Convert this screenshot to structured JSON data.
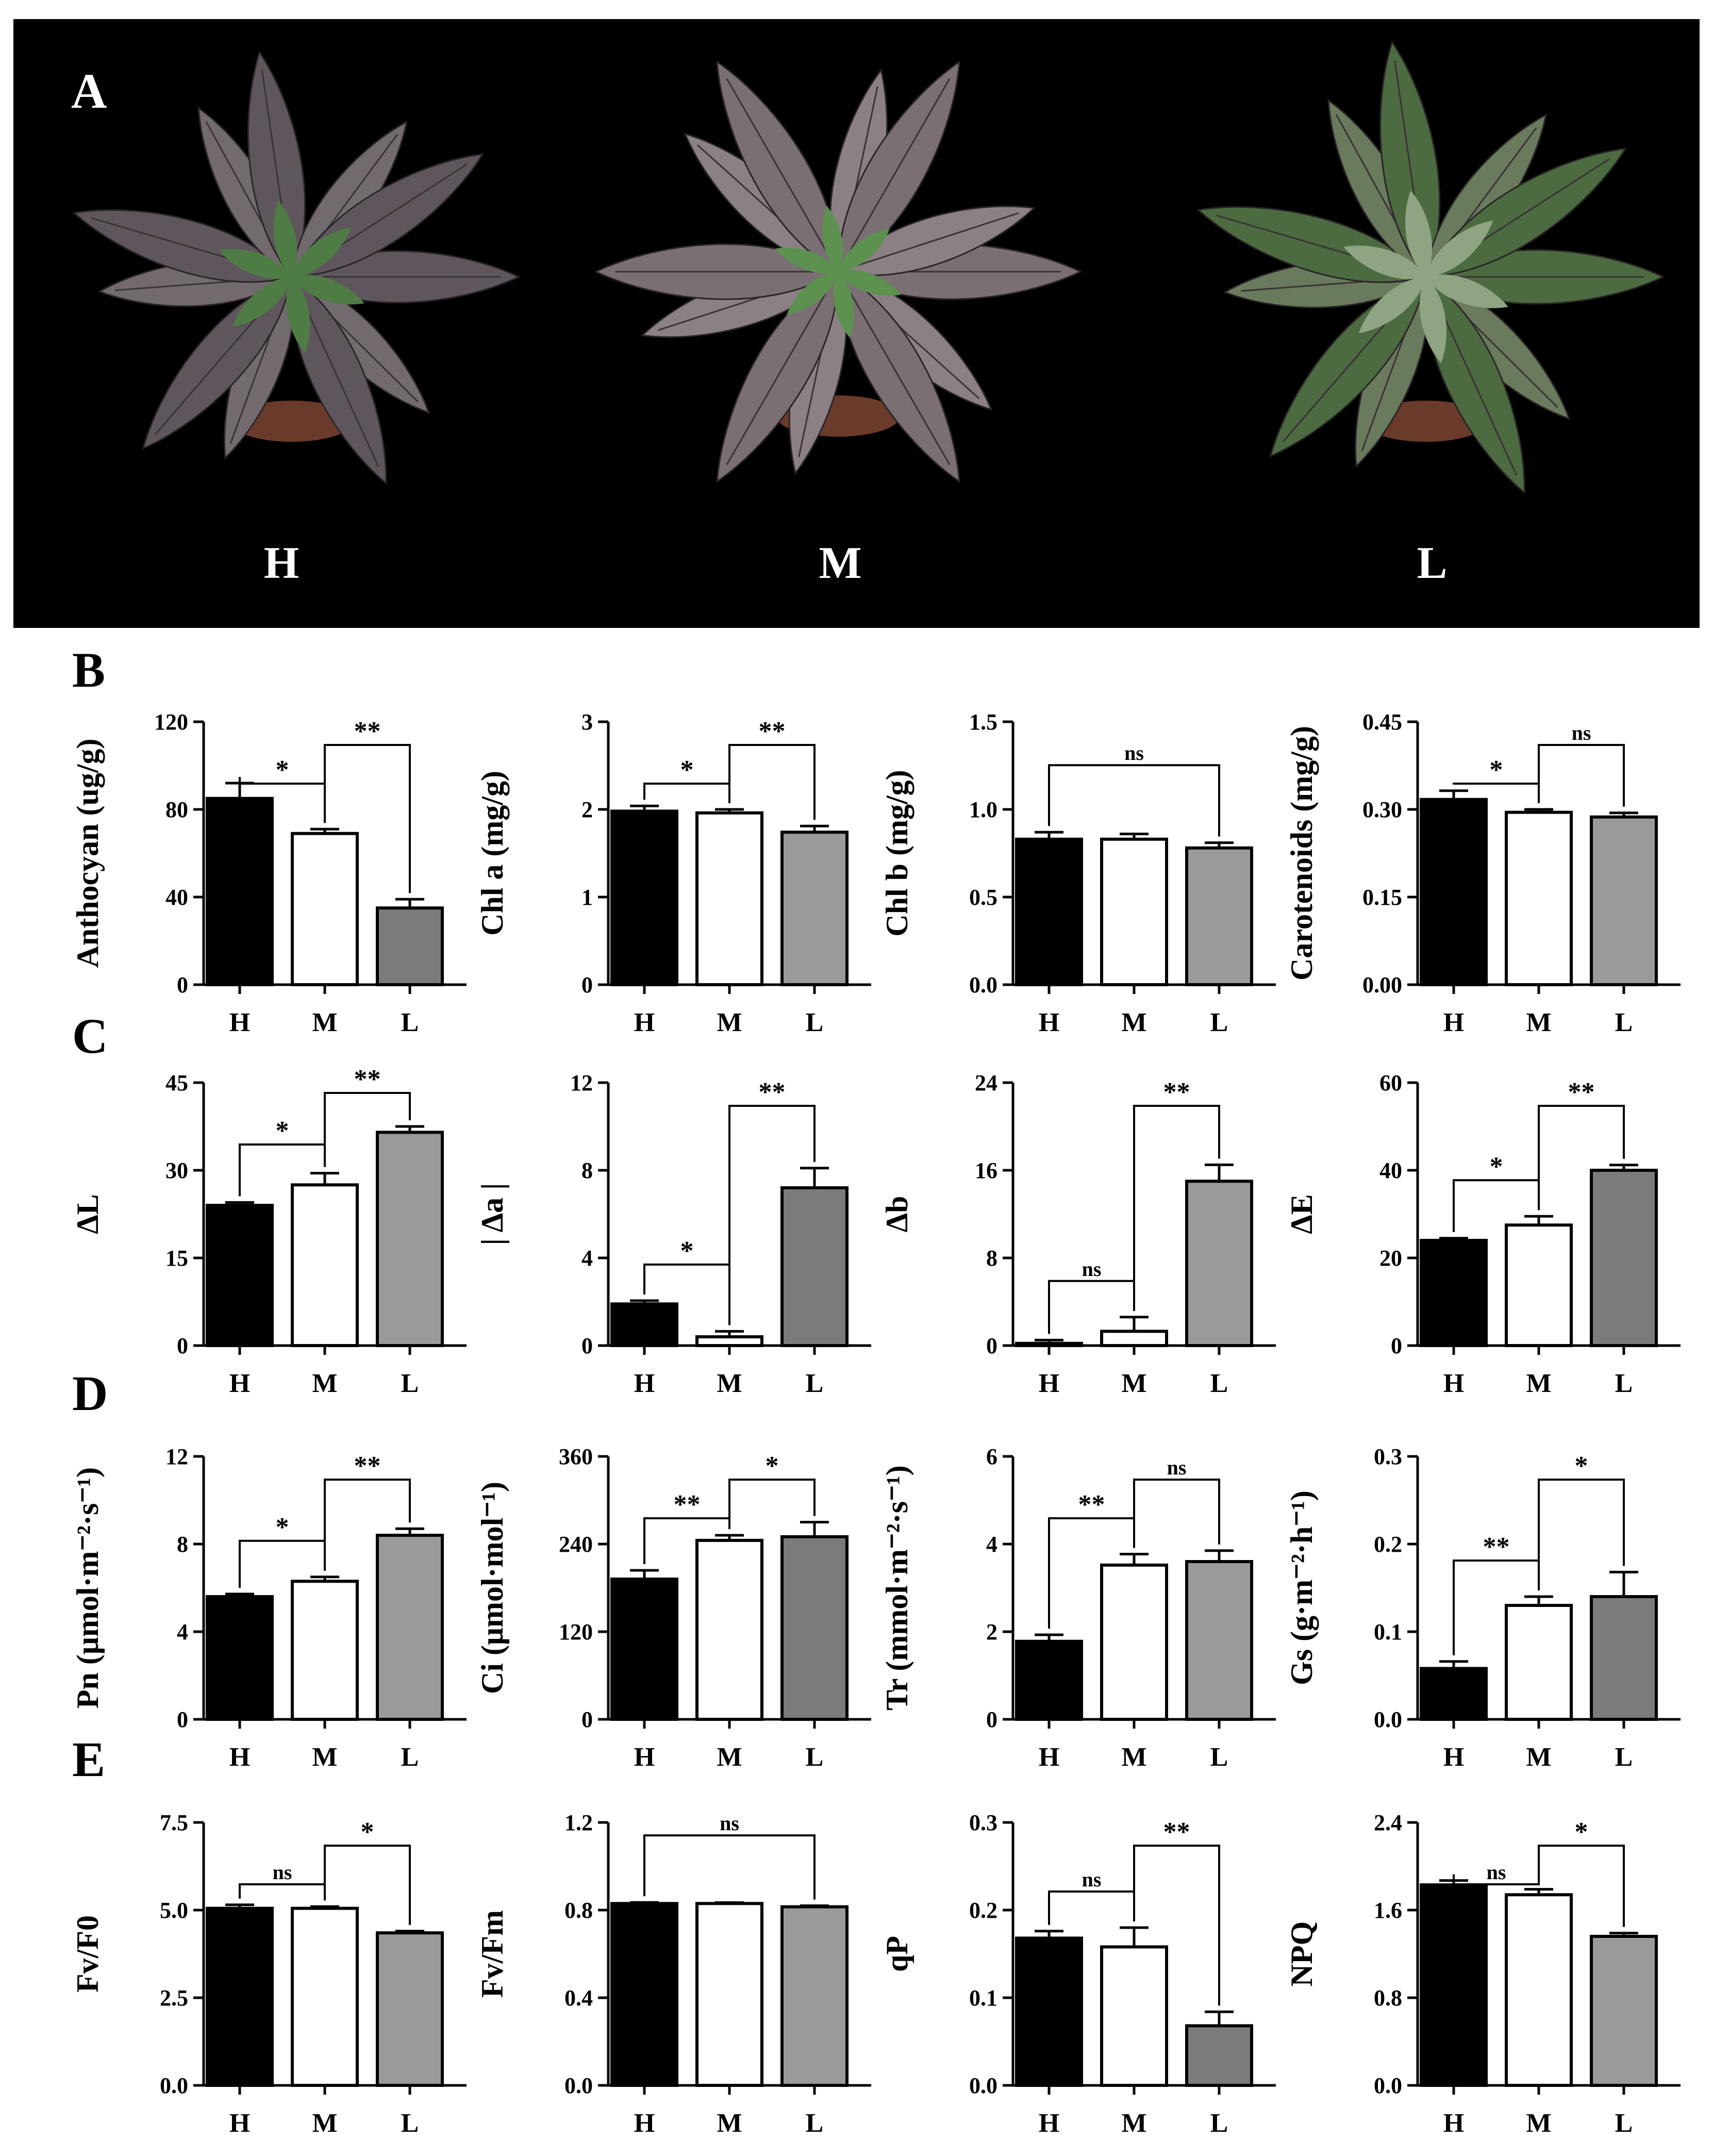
{
  "panels": {
    "a": "A",
    "b": "B",
    "c": "C",
    "d": "D",
    "e": "E"
  },
  "photo": {
    "labels": [
      "H",
      "M",
      "L"
    ]
  },
  "colors": {
    "H": "#000000",
    "M": "#ffffff",
    "L_dark": "#7b7b7b",
    "L_light": "#9a9a9a",
    "background": "#000000",
    "leaf_purple": "#6e636c",
    "leaf_green": "#4f7c45"
  },
  "chart_data": [
    {
      "type": "bar",
      "panel": "B",
      "ylabel": "Anthocyan (ug/g)",
      "categories": [
        "H",
        "M",
        "L"
      ],
      "values": [
        85,
        69,
        35
      ],
      "errors": [
        7,
        2,
        4
      ],
      "ylim": [
        0,
        120
      ],
      "yticks": [
        "0",
        "40",
        "80",
        "120"
      ],
      "fills": [
        "#000000",
        "#ffffff",
        "#7b7b7b"
      ],
      "significance": [
        {
          "from": 0,
          "to": 1,
          "label": "*"
        },
        {
          "from": 1,
          "to": 2,
          "label": "**"
        }
      ]
    },
    {
      "type": "bar",
      "panel": "B",
      "ylabel": "Chl a (mg/g)",
      "categories": [
        "H",
        "M",
        "L"
      ],
      "values": [
        1.98,
        1.96,
        1.74
      ],
      "errors": [
        0.06,
        0.04,
        0.07
      ],
      "ylim": [
        0,
        3
      ],
      "yticks": [
        "0",
        "1",
        "2",
        "3"
      ],
      "fills": [
        "#000000",
        "#ffffff",
        "#9a9a9a"
      ],
      "significance": [
        {
          "from": 0,
          "to": 1,
          "label": "*"
        },
        {
          "from": 1,
          "to": 2,
          "label": "**"
        }
      ]
    },
    {
      "type": "bar",
      "panel": "B",
      "ylabel": "Chl b (mg/g)",
      "categories": [
        "H",
        "M",
        "L"
      ],
      "values": [
        0.83,
        0.83,
        0.78
      ],
      "errors": [
        0.04,
        0.03,
        0.03
      ],
      "ylim": [
        0,
        1.5
      ],
      "yticks": [
        "0.0",
        "0.5",
        "1.0",
        "1.5"
      ],
      "fills": [
        "#000000",
        "#ffffff",
        "#9a9a9a"
      ],
      "significance": [
        {
          "from": 0,
          "to": 2,
          "label": "ns"
        }
      ]
    },
    {
      "type": "bar",
      "panel": "B",
      "ylabel": "Carotenoids (mg/g)",
      "categories": [
        "H",
        "M",
        "L"
      ],
      "values": [
        0.317,
        0.295,
        0.287
      ],
      "errors": [
        0.015,
        0.005,
        0.007
      ],
      "ylim": [
        0,
        0.45
      ],
      "yticks": [
        "0.00",
        "0.15",
        "0.30",
        "0.45"
      ],
      "fills": [
        "#000000",
        "#ffffff",
        "#9a9a9a"
      ],
      "significance": [
        {
          "from": 0,
          "to": 1,
          "label": "*"
        },
        {
          "from": 1,
          "to": 2,
          "label": "ns"
        }
      ]
    },
    {
      "type": "bar",
      "panel": "C",
      "ylabel": "ΔL",
      "categories": [
        "H",
        "M",
        "L"
      ],
      "values": [
        24,
        27.5,
        36.5
      ],
      "errors": [
        0.5,
        2,
        1
      ],
      "ylim": [
        0,
        45
      ],
      "yticks": [
        "0",
        "15",
        "30",
        "45"
      ],
      "fills": [
        "#000000",
        "#ffffff",
        "#9a9a9a"
      ],
      "significance": [
        {
          "from": 0,
          "to": 1,
          "label": "*"
        },
        {
          "from": 1,
          "to": 2,
          "label": "**"
        }
      ]
    },
    {
      "type": "bar",
      "panel": "C",
      "ylabel": "| Δa |",
      "categories": [
        "H",
        "M",
        "L"
      ],
      "values": [
        1.9,
        0.4,
        7.2
      ],
      "errors": [
        0.15,
        0.25,
        0.9
      ],
      "ylim": [
        0,
        12
      ],
      "yticks": [
        "0",
        "4",
        "8",
        "12"
      ],
      "fills": [
        "#000000",
        "#ffffff",
        "#7b7b7b"
      ],
      "significance": [
        {
          "from": 0,
          "to": 1,
          "label": "*"
        },
        {
          "from": 1,
          "to": 2,
          "label": "**"
        }
      ]
    },
    {
      "type": "bar",
      "panel": "C",
      "ylabel": "Δb",
      "categories": [
        "H",
        "M",
        "L"
      ],
      "values": [
        0.2,
        1.3,
        15
      ],
      "errors": [
        0.3,
        1.3,
        1.5
      ],
      "ylim": [
        0,
        24
      ],
      "yticks": [
        "0",
        "8",
        "16",
        "24"
      ],
      "fills": [
        "#000000",
        "#ffffff",
        "#9a9a9a"
      ],
      "significance": [
        {
          "from": 0,
          "to": 1,
          "label": "ns"
        },
        {
          "from": 1,
          "to": 2,
          "label": "**"
        }
      ]
    },
    {
      "type": "bar",
      "panel": "C",
      "ylabel": "ΔE",
      "categories": [
        "H",
        "M",
        "L"
      ],
      "values": [
        24,
        27.5,
        40
      ],
      "errors": [
        0.5,
        2,
        1.2
      ],
      "ylim": [
        0,
        60
      ],
      "yticks": [
        "0",
        "20",
        "40",
        "60"
      ],
      "fills": [
        "#000000",
        "#ffffff",
        "#7b7b7b"
      ],
      "significance": [
        {
          "from": 0,
          "to": 1,
          "label": "*"
        },
        {
          "from": 1,
          "to": 2,
          "label": "**"
        }
      ]
    },
    {
      "type": "bar",
      "panel": "D",
      "ylabel": "Pn (μmol·m⁻²·s⁻¹)",
      "categories": [
        "H",
        "M",
        "L"
      ],
      "values": [
        5.6,
        6.3,
        8.4
      ],
      "errors": [
        0.12,
        0.2,
        0.3
      ],
      "ylim": [
        0,
        12
      ],
      "yticks": [
        "0",
        "4",
        "8",
        "12"
      ],
      "fills": [
        "#000000",
        "#ffffff",
        "#9a9a9a"
      ],
      "significance": [
        {
          "from": 0,
          "to": 1,
          "label": "*"
        },
        {
          "from": 1,
          "to": 2,
          "label": "**"
        }
      ]
    },
    {
      "type": "bar",
      "panel": "D",
      "ylabel": "Ci (μmol·mol⁻¹)",
      "categories": [
        "H",
        "M",
        "L"
      ],
      "values": [
        192,
        245,
        250
      ],
      "errors": [
        12,
        7,
        20
      ],
      "ylim": [
        0,
        360
      ],
      "yticks": [
        "0",
        "120",
        "240",
        "360"
      ],
      "fills": [
        "#000000",
        "#ffffff",
        "#7b7b7b"
      ],
      "significance": [
        {
          "from": 0,
          "to": 1,
          "label": "**"
        },
        {
          "from": 1,
          "to": 2,
          "label": "*"
        }
      ]
    },
    {
      "type": "bar",
      "panel": "D",
      "ylabel": "Tr (mmol·m⁻²·s⁻¹)",
      "categories": [
        "H",
        "M",
        "L"
      ],
      "values": [
        1.78,
        3.52,
        3.6
      ],
      "errors": [
        0.15,
        0.25,
        0.25
      ],
      "ylim": [
        0,
        6
      ],
      "yticks": [
        "0",
        "2",
        "4",
        "6"
      ],
      "fills": [
        "#000000",
        "#ffffff",
        "#9a9a9a"
      ],
      "significance": [
        {
          "from": 0,
          "to": 1,
          "label": "**"
        },
        {
          "from": 1,
          "to": 2,
          "label": "ns"
        }
      ]
    },
    {
      "type": "bar",
      "panel": "D",
      "ylabel": "Gs (g·m⁻²·h⁻¹)",
      "categories": [
        "H",
        "M",
        "L"
      ],
      "values": [
        0.058,
        0.13,
        0.14
      ],
      "errors": [
        0.008,
        0.01,
        0.028
      ],
      "ylim": [
        0,
        0.3
      ],
      "yticks": [
        "0.0",
        "0.1",
        "0.2",
        "0.3"
      ],
      "fills": [
        "#000000",
        "#ffffff",
        "#7b7b7b"
      ],
      "significance": [
        {
          "from": 0,
          "to": 1,
          "label": "**"
        },
        {
          "from": 1,
          "to": 2,
          "label": "*"
        }
      ]
    },
    {
      "type": "bar",
      "panel": "E",
      "ylabel": "Fv/F0",
      "categories": [
        "H",
        "M",
        "L"
      ],
      "values": [
        5.05,
        5.05,
        4.35
      ],
      "errors": [
        0.1,
        0.05,
        0.05
      ],
      "ylim": [
        0,
        7.5
      ],
      "yticks": [
        "0.0",
        "2.5",
        "5.0",
        "7.5"
      ],
      "fills": [
        "#000000",
        "#ffffff",
        "#9a9a9a"
      ],
      "significance": [
        {
          "from": 0,
          "to": 1,
          "label": "ns"
        },
        {
          "from": 1,
          "to": 2,
          "label": "*"
        }
      ]
    },
    {
      "type": "bar",
      "panel": "E",
      "ylabel": "Fv/Fm",
      "categories": [
        "H",
        "M",
        "L"
      ],
      "values": [
        0.83,
        0.83,
        0.815
      ],
      "errors": [
        0.005,
        0.004,
        0.005
      ],
      "ylim": [
        0,
        1.2
      ],
      "yticks": [
        "0.0",
        "0.4",
        "0.8",
        "1.2"
      ],
      "fills": [
        "#000000",
        "#ffffff",
        "#9a9a9a"
      ],
      "significance": [
        {
          "from": 0,
          "to": 2,
          "label": "ns"
        }
      ]
    },
    {
      "type": "bar",
      "panel": "E",
      "ylabel": "qP",
      "categories": [
        "H",
        "M",
        "L"
      ],
      "values": [
        0.168,
        0.158,
        0.068
      ],
      "errors": [
        0.008,
        0.022,
        0.016
      ],
      "ylim": [
        0,
        0.3
      ],
      "yticks": [
        "0.0",
        "0.1",
        "0.2",
        "0.3"
      ],
      "fills": [
        "#000000",
        "#ffffff",
        "#7b7b7b"
      ],
      "significance": [
        {
          "from": 0,
          "to": 1,
          "label": "ns"
        },
        {
          "from": 1,
          "to": 2,
          "label": "**"
        }
      ]
    },
    {
      "type": "bar",
      "panel": "E",
      "ylabel": "NPQ",
      "categories": [
        "H",
        "M",
        "L"
      ],
      "values": [
        1.83,
        1.74,
        1.36
      ],
      "errors": [
        0.04,
        0.05,
        0.03
      ],
      "ylim": [
        0,
        2.4
      ],
      "yticks": [
        "0.0",
        "0.8",
        "1.6",
        "2.4"
      ],
      "fills": [
        "#000000",
        "#ffffff",
        "#9a9a9a"
      ],
      "significance": [
        {
          "from": 0,
          "to": 1,
          "label": "ns"
        },
        {
          "from": 1,
          "to": 2,
          "label": "*"
        }
      ]
    }
  ]
}
